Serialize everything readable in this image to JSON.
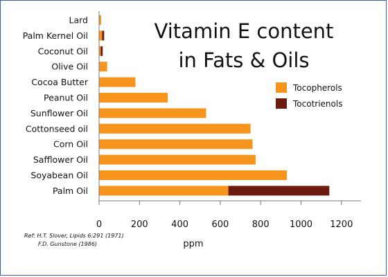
{
  "chart_data": {
    "type": "bar",
    "orientation": "horizontal",
    "stacked": true,
    "title_lines": [
      "Vitamin E content",
      "in Fats & Oils"
    ],
    "xlabel": "ppm",
    "ylabel": "",
    "xlim": [
      0,
      1250
    ],
    "xticks": [
      0,
      200,
      400,
      600,
      800,
      1000,
      1200
    ],
    "grid": false,
    "legend_position": "right",
    "categories": [
      "Lard",
      "Palm Kernel Oil",
      "Coconut Oil",
      "Olive Oil",
      "Cocoa Butter",
      "Peanut Oil",
      "Sunflower Oil",
      "Cottonseed oil",
      "Corn Oil",
      "Safflower Oil",
      "Soyabean Oil",
      "Palm Oil"
    ],
    "series": [
      {
        "name": "Tocopherols",
        "color": "#f7941d",
        "values": [
          10,
          15,
          8,
          40,
          180,
          340,
          530,
          750,
          760,
          775,
          930,
          640
        ]
      },
      {
        "name": "Tocotrienols",
        "color": "#6b1c0f",
        "values": [
          0,
          10,
          10,
          0,
          0,
          0,
          0,
          0,
          0,
          0,
          0,
          500
        ]
      }
    ],
    "references": [
      "Ref: H.T. Slover, Lipids 6:291 (1971)",
      "F.D. Gunstone (1986)"
    ]
  }
}
